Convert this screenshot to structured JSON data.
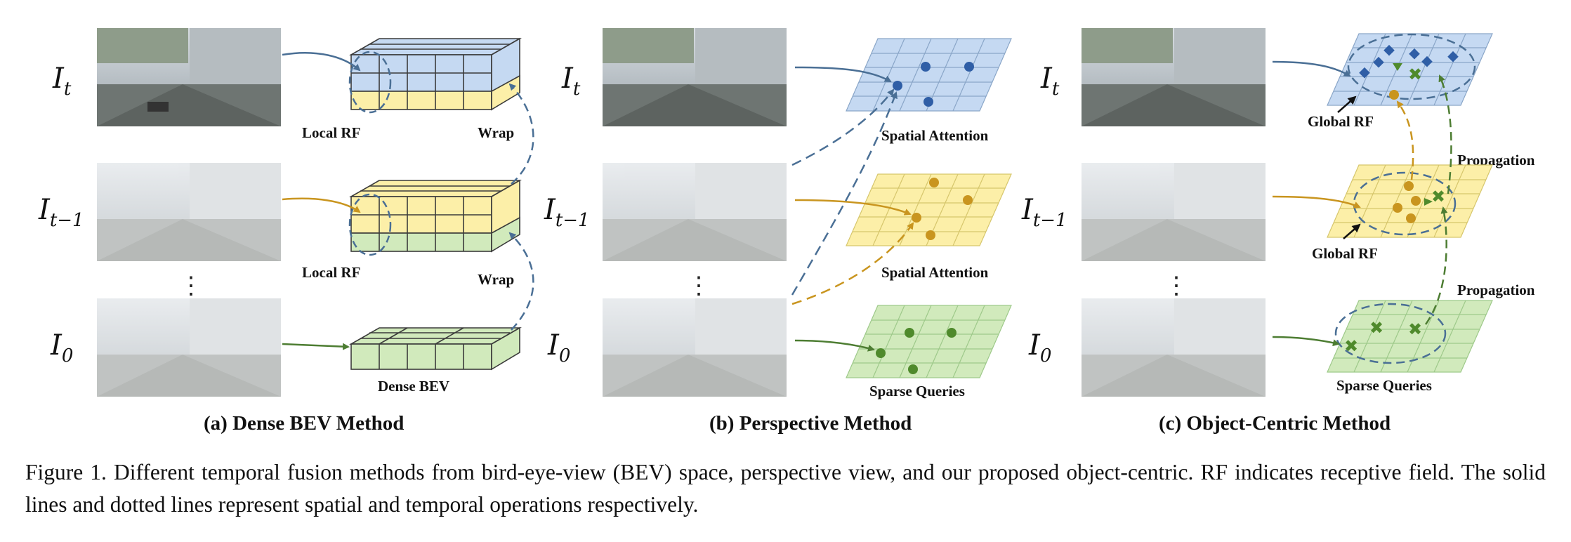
{
  "panels": [
    {
      "title": "(a) Dense BEV Method",
      "frames": [
        {
          "label": "I",
          "sub": "t"
        },
        {
          "label": "I",
          "sub": "t−1"
        },
        {
          "label": "I",
          "sub": "0"
        }
      ],
      "dots": "⋮",
      "labels": {
        "local_rf_top": "Local RF",
        "wrap_top": "Wrap",
        "local_rf_mid": "Local RF",
        "wrap_mid": "Wrap",
        "dense_bev": "Dense BEV"
      }
    },
    {
      "title": "(b) Perspective Method",
      "frames": [
        {
          "label": "I",
          "sub": "t"
        },
        {
          "label": "I",
          "sub": "t−1"
        },
        {
          "label": "I",
          "sub": "0"
        }
      ],
      "dots": "⋮",
      "labels": {
        "spatial_attention_top": "Spatial Attention",
        "spatial_attention_mid": "Spatial Attention",
        "sparse_queries": "Sparse Queries"
      }
    },
    {
      "title": "(c) Object-Centric Method",
      "frames": [
        {
          "label": "I",
          "sub": "t"
        },
        {
          "label": "I",
          "sub": "t−1"
        },
        {
          "label": "I",
          "sub": "0"
        }
      ],
      "dots": "⋮",
      "labels": {
        "global_rf_top": "Global RF",
        "propagation_top": "Propagation",
        "global_rf_mid": "Global RF",
        "propagation_bottom": "Propagation",
        "sparse_queries": "Sparse Queries"
      }
    }
  ],
  "caption": "Figure 1. Different temporal fusion methods from bird-eye-view (BEV) space, perspective view, and our proposed object-centric. RF indicates receptive field. The solid lines and dotted lines represent spatial and temporal operations respectively.",
  "colors": {
    "blue": "#c5d9f2",
    "yellow": "#fcefa8",
    "green": "#d1eabc",
    "arrow_blue": "#4a6f95",
    "arrow_yellow": "#c9951f",
    "arrow_green": "#4d7d32",
    "marker_blue": "#2f5ea6",
    "marker_yellow": "#c9951f",
    "marker_green": "#4f8a2c"
  }
}
